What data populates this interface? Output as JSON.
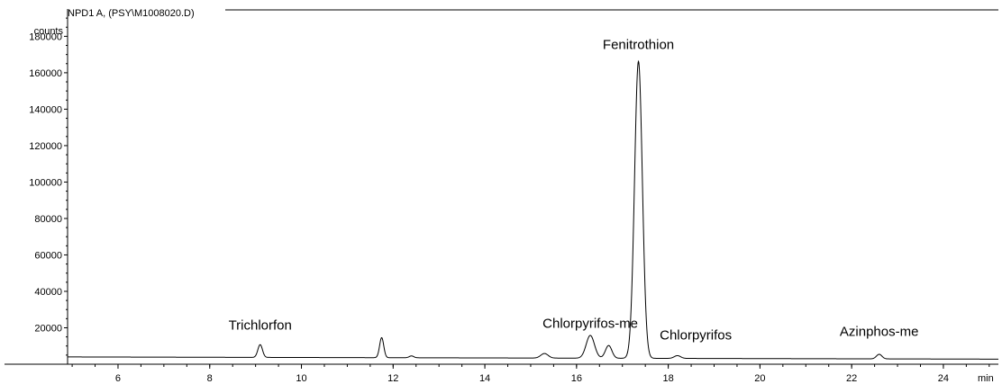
{
  "chart_data": {
    "type": "line",
    "title": "NPD1 A,  (PSY\\M1008020.D)",
    "ylabel": "counts",
    "xlabel": "min",
    "xlim": [
      4.9,
      25.2
    ],
    "ylim": [
      0,
      195000
    ],
    "x_ticks": [
      "6",
      "8",
      "10",
      "12",
      "14",
      "16",
      "18",
      "20",
      "22",
      "24"
    ],
    "y_ticks": [
      "20000",
      "40000",
      "60000",
      "80000",
      "100000",
      "120000",
      "140000",
      "160000",
      "180000"
    ],
    "baseline": 4000,
    "peaks": [
      {
        "rt": 9.1,
        "height": 11000,
        "width": 0.05
      },
      {
        "rt": 11.75,
        "height": 15000,
        "width": 0.045
      },
      {
        "rt": 12.4,
        "height": 5000,
        "width": 0.05
      },
      {
        "rt": 15.3,
        "height": 6500,
        "width": 0.08
      },
      {
        "rt": 16.3,
        "height": 16500,
        "width": 0.09
      },
      {
        "rt": 16.7,
        "height": 11000,
        "width": 0.07
      },
      {
        "rt": 17.35,
        "height": 167000,
        "width": 0.085
      },
      {
        "rt": 18.2,
        "height": 5500,
        "width": 0.07
      },
      {
        "rt": 22.6,
        "height": 6500,
        "width": 0.06
      }
    ],
    "annotations": [
      {
        "text": "Trichlorfon",
        "x": 9.1,
        "y": 19000
      },
      {
        "text": "Chlorpyrifos-me",
        "x": 16.3,
        "y": 20000
      },
      {
        "text": "Fenitrothion",
        "x": 17.35,
        "y": 173000
      },
      {
        "text": "Chlorpyrifos",
        "x": 18.6,
        "y": 13500
      },
      {
        "text": "Azinphos-me",
        "x": 22.6,
        "y": 15500
      }
    ],
    "line_color": "#000000",
    "grid": false
  }
}
